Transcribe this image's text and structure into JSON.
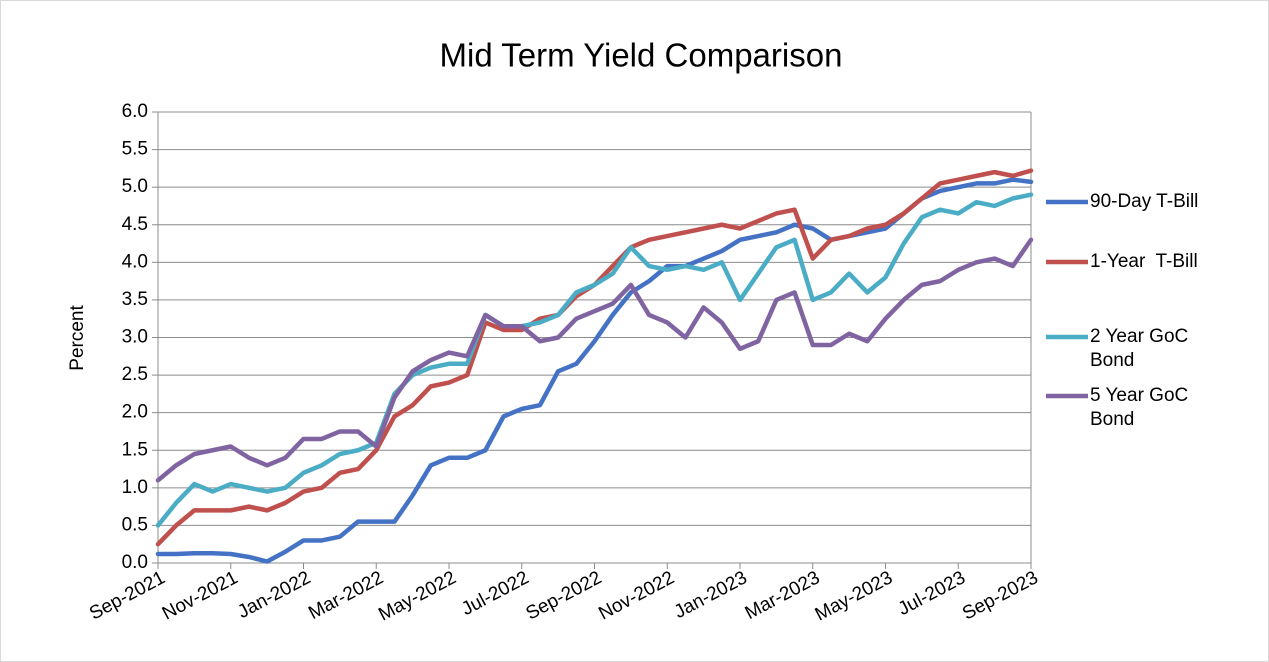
{
  "chart_data": {
    "type": "line",
    "title": "Mid Term Yield Comparison",
    "y_label": "Percent",
    "categories": [
      "Sep-2021",
      null,
      null,
      null,
      "Nov-2021",
      null,
      null,
      null,
      "Jan-2022",
      null,
      null,
      null,
      "Mar-2022",
      null,
      null,
      null,
      "May-2022",
      null,
      null,
      null,
      "Jul-2022",
      null,
      null,
      null,
      "Sep-2022",
      null,
      null,
      null,
      "Nov-2022",
      null,
      null,
      null,
      "Jan-2023",
      null,
      null,
      null,
      "Mar-2023",
      null,
      null,
      null,
      "May-2023",
      null,
      null,
      null,
      "Jul-2023",
      null,
      null,
      null,
      "Sep-2023"
    ],
    "series": [
      {
        "name": "90-Day T-Bill",
        "color": "#4472c4",
        "values": [
          0.12,
          0.12,
          0.13,
          0.13,
          0.12,
          0.08,
          0.02,
          0.15,
          0.3,
          0.3,
          0.35,
          0.55,
          0.55,
          0.55,
          0.9,
          1.3,
          1.4,
          1.4,
          1.5,
          1.95,
          2.05,
          2.1,
          2.55,
          2.65,
          2.95,
          3.3,
          3.6,
          3.75,
          3.95,
          3.95,
          4.05,
          4.15,
          4.3,
          4.35,
          4.4,
          4.5,
          4.45,
          4.3,
          4.35,
          4.4,
          4.45,
          4.65,
          4.85,
          4.95,
          5.0,
          5.05,
          5.05,
          5.1,
          5.07
        ]
      },
      {
        "name": "1-Year  T-Bill",
        "color": "#c0504d",
        "values": [
          0.25,
          0.5,
          0.7,
          0.7,
          0.7,
          0.75,
          0.7,
          0.8,
          0.95,
          1.0,
          1.2,
          1.25,
          1.5,
          1.95,
          2.1,
          2.35,
          2.4,
          2.5,
          3.2,
          3.1,
          3.1,
          3.25,
          3.3,
          3.55,
          3.7,
          3.95,
          4.2,
          4.3,
          4.35,
          4.4,
          4.45,
          4.5,
          4.45,
          4.55,
          4.65,
          4.7,
          4.05,
          4.3,
          4.35,
          4.45,
          4.5,
          4.65,
          4.85,
          5.05,
          5.1,
          5.15,
          5.2,
          5.15,
          5.22
        ]
      },
      {
        "name": "2 Year GoC Bond",
        "color": "#4bacc6",
        "values": [
          0.5,
          0.8,
          1.05,
          0.95,
          1.05,
          1.0,
          0.95,
          1.0,
          1.2,
          1.3,
          1.45,
          1.5,
          1.6,
          2.25,
          2.5,
          2.6,
          2.65,
          2.65,
          3.3,
          3.15,
          3.15,
          3.2,
          3.3,
          3.6,
          3.7,
          3.85,
          4.2,
          3.95,
          3.9,
          3.95,
          3.9,
          4.0,
          3.5,
          3.85,
          4.2,
          4.3,
          3.5,
          3.6,
          3.85,
          3.6,
          3.8,
          4.25,
          4.6,
          4.7,
          4.65,
          4.8,
          4.75,
          4.85,
          4.9
        ]
      },
      {
        "name": "5 Year GoC Bond",
        "color": "#8064a2",
        "values": [
          1.1,
          1.3,
          1.45,
          1.5,
          1.55,
          1.4,
          1.3,
          1.4,
          1.65,
          1.65,
          1.75,
          1.75,
          1.55,
          2.2,
          2.55,
          2.7,
          2.8,
          2.75,
          3.3,
          3.15,
          3.15,
          2.95,
          3.0,
          3.25,
          3.35,
          3.45,
          3.7,
          3.3,
          3.2,
          3.0,
          3.4,
          3.2,
          2.85,
          2.95,
          3.5,
          3.6,
          2.9,
          2.9,
          3.05,
          2.95,
          3.25,
          3.5,
          3.7,
          3.75,
          3.9,
          4.0,
          4.05,
          3.95,
          4.3
        ]
      }
    ],
    "ylim": [
      0,
      6
    ],
    "yticks": [
      {
        "value": 0,
        "label": "0.0"
      },
      0.5,
      {
        "value": 1,
        "label": "1.0"
      },
      1.5,
      {
        "value": 2,
        "label": "2.0"
      },
      2.5,
      {
        "value": 3,
        "label": "3.0"
      },
      3.5,
      {
        "value": 4,
        "label": "4.0"
      },
      4.5,
      {
        "value": 5,
        "label": "5.0"
      },
      5.5,
      {
        "value": 6,
        "label": "6.0"
      }
    ],
    "grid": true,
    "legend": "right"
  }
}
